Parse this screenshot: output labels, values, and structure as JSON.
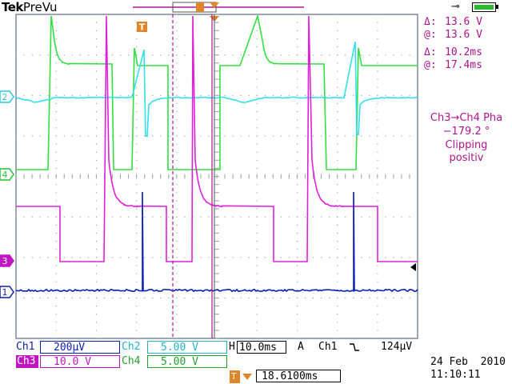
{
  "header": {
    "brand": "Tek",
    "mode": "PreVu",
    "trigger_marker": "T",
    "cursor_marker_label": "T"
  },
  "channel_markers": [
    {
      "id": "2",
      "color": "#24c8dc"
    },
    {
      "id": "4",
      "color": "#22c038"
    },
    {
      "id": "3",
      "color": "#c018c0"
    },
    {
      "id": "1",
      "color": "#1020b0"
    }
  ],
  "colors": {
    "ch1": "#0a1eb4",
    "ch2": "#30e0ec",
    "ch3": "#e020d8",
    "ch4": "#30e040",
    "grid": "#9aa6b8",
    "accent": "#e0862a",
    "meas_text": "#b0138f"
  },
  "measurements": {
    "delta_v_symbol": "Δ:",
    "delta_v": "13.6 V",
    "at_v_symbol": "@:",
    "at_v": "13.6 V",
    "delta_t_symbol": "Δ:",
    "delta_t": "10.2ms",
    "at_t_symbol": "@:",
    "at_t": "17.4ms",
    "phase_title": "Ch3→Ch4 Pha",
    "phase_value": "−179.2 °",
    "phase_warning_1": "Clipping",
    "phase_warning_2": "positiv"
  },
  "settings": {
    "ch1_label": "Ch1",
    "ch1_scale": "200µV",
    "ch2_label": "Ch2",
    "ch2_scale": "5.00 V",
    "ch3_label": "Ch3",
    "ch3_scale": "10.0 V",
    "ch4_label": "Ch4",
    "ch4_scale": "5.00 V",
    "horizontal_label": "H",
    "horizontal_scale": "10.0ms",
    "acq_mode": "A",
    "trigger_source": "Ch1",
    "trigger_slope_icon": "falling-edge-icon",
    "trigger_level": "124µV",
    "trigger_position": "18.6100ms",
    "date": "24 Feb  2010",
    "time": "11:10:11"
  },
  "icons": {
    "power": "power-plug-icon",
    "battery": "battery-icon"
  }
}
